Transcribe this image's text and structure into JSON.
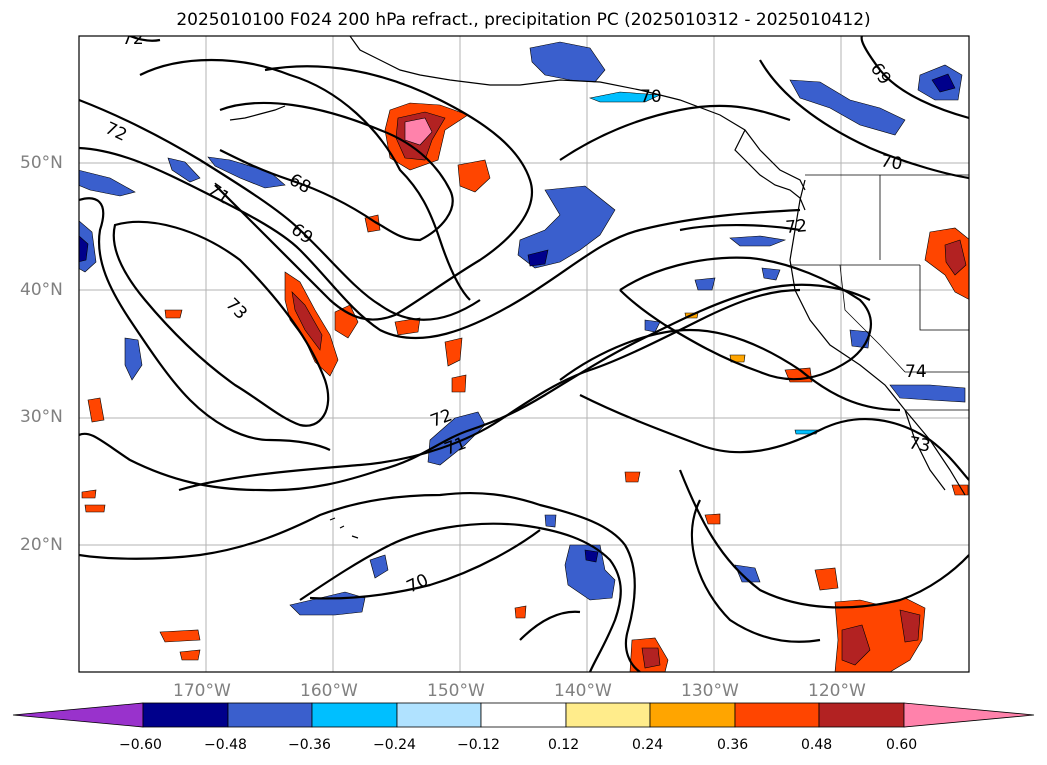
{
  "title": "2025010100 F024 200 hPa refract., precipitation PC (2025010312 - 2025010412)",
  "lat_labels": [
    "50°N",
    "40°N",
    "30°N",
    "20°N"
  ],
  "lon_labels": [
    "170°W",
    "160°W",
    "150°W",
    "140°W",
    "130°W",
    "120°W"
  ],
  "contour_labels": [
    "72",
    "72",
    "71",
    "68",
    "69",
    "73",
    "70",
    "69",
    "70",
    "72",
    "74",
    "73",
    "72",
    "71",
    "70"
  ],
  "colorbar": {
    "ticks": [
      "−0.60",
      "−0.48",
      "−0.36",
      "−0.24",
      "−0.12",
      "0.12",
      "0.24",
      "0.36",
      "0.48",
      "0.60"
    ],
    "colors": [
      "#9932cc",
      "#00008b",
      "#3a5fcd",
      "#00bfff",
      "#b0e2ff",
      "#ffffff",
      "#ffec8b",
      "#ffa500",
      "#ff4500",
      "#b22222",
      "#ff82ab"
    ]
  },
  "colors": {
    "frame": "#000000",
    "grid": "#b3b3b3",
    "contour": "#000000",
    "coast": "#000000"
  }
}
